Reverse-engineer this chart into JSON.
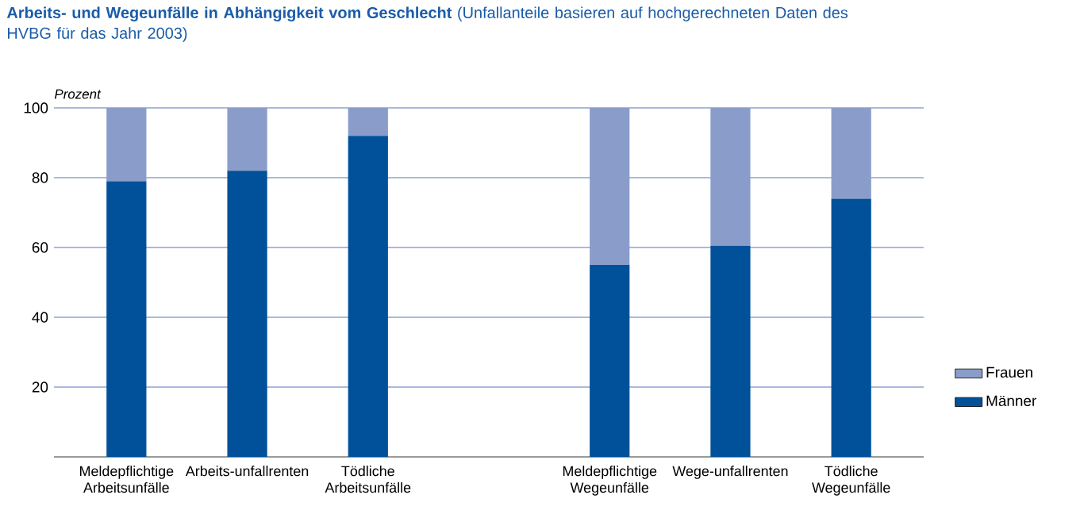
{
  "chart_data": {
    "type": "bar",
    "stacked": true,
    "title": "**Arbeits- und Wegeunfälle in Abhängigkeit vom Geschlecht** (Unfallanteile basieren auf hochgerechneten Daten des HVBG für das Jahr 2003)",
    "ylabel": "Prozent",
    "categories": [
      "Meldepflichtige Arbeitsunfälle",
      "Arbeits-unfallrenten",
      "Tödliche Arbeitsunfälle",
      null,
      "Meldepflichtige Wegeunfälle",
      "Wege-unfallrenten",
      "Tödliche Wegeunfälle"
    ],
    "series": [
      {
        "name": "Männer",
        "color": "#00519a",
        "values": [
          79,
          82,
          92,
          null,
          55,
          60.5,
          74
        ]
      },
      {
        "name": "Frauen",
        "color": "#8a9dca",
        "values": [
          21,
          18,
          8,
          null,
          45,
          39.5,
          26
        ]
      }
    ],
    "ylim": [
      0,
      100
    ],
    "yticks": [
      20,
      40,
      60,
      80,
      100
    ],
    "grid": "y",
    "legend": "right"
  }
}
